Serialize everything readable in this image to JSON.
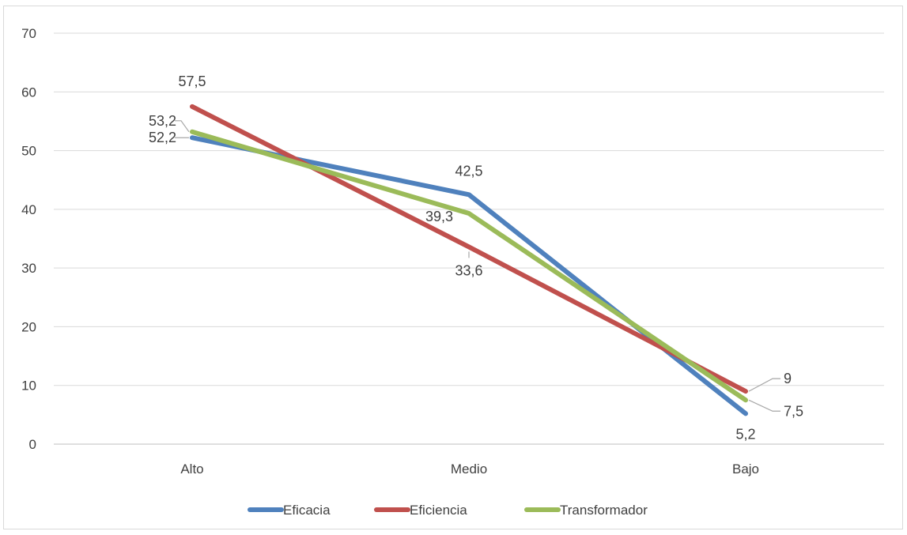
{
  "chart_data": {
    "type": "line",
    "categories": [
      "Alto",
      "Medio",
      "Bajo"
    ],
    "series": [
      {
        "name": "Eficacia",
        "values": [
          52.2,
          42.5,
          5.2
        ],
        "labels": [
          "52,2",
          "42,5",
          "5,2"
        ],
        "color": "#4f81bd"
      },
      {
        "name": "Eficiencia",
        "values": [
          57.5,
          33.6,
          9
        ],
        "labels": [
          "57,5",
          "33,6",
          "9"
        ],
        "color": "#c0504d"
      },
      {
        "name": "Transformador",
        "values": [
          53.2,
          39.3,
          7.5
        ],
        "labels": [
          "53,2",
          "39,3",
          "7,5"
        ],
        "color": "#9bbb59"
      }
    ],
    "ylim": [
      0,
      70
    ],
    "yticks": [
      "0",
      "10",
      "20",
      "30",
      "40",
      "50",
      "60",
      "70"
    ],
    "grid": true,
    "legend_position": "bottom"
  }
}
